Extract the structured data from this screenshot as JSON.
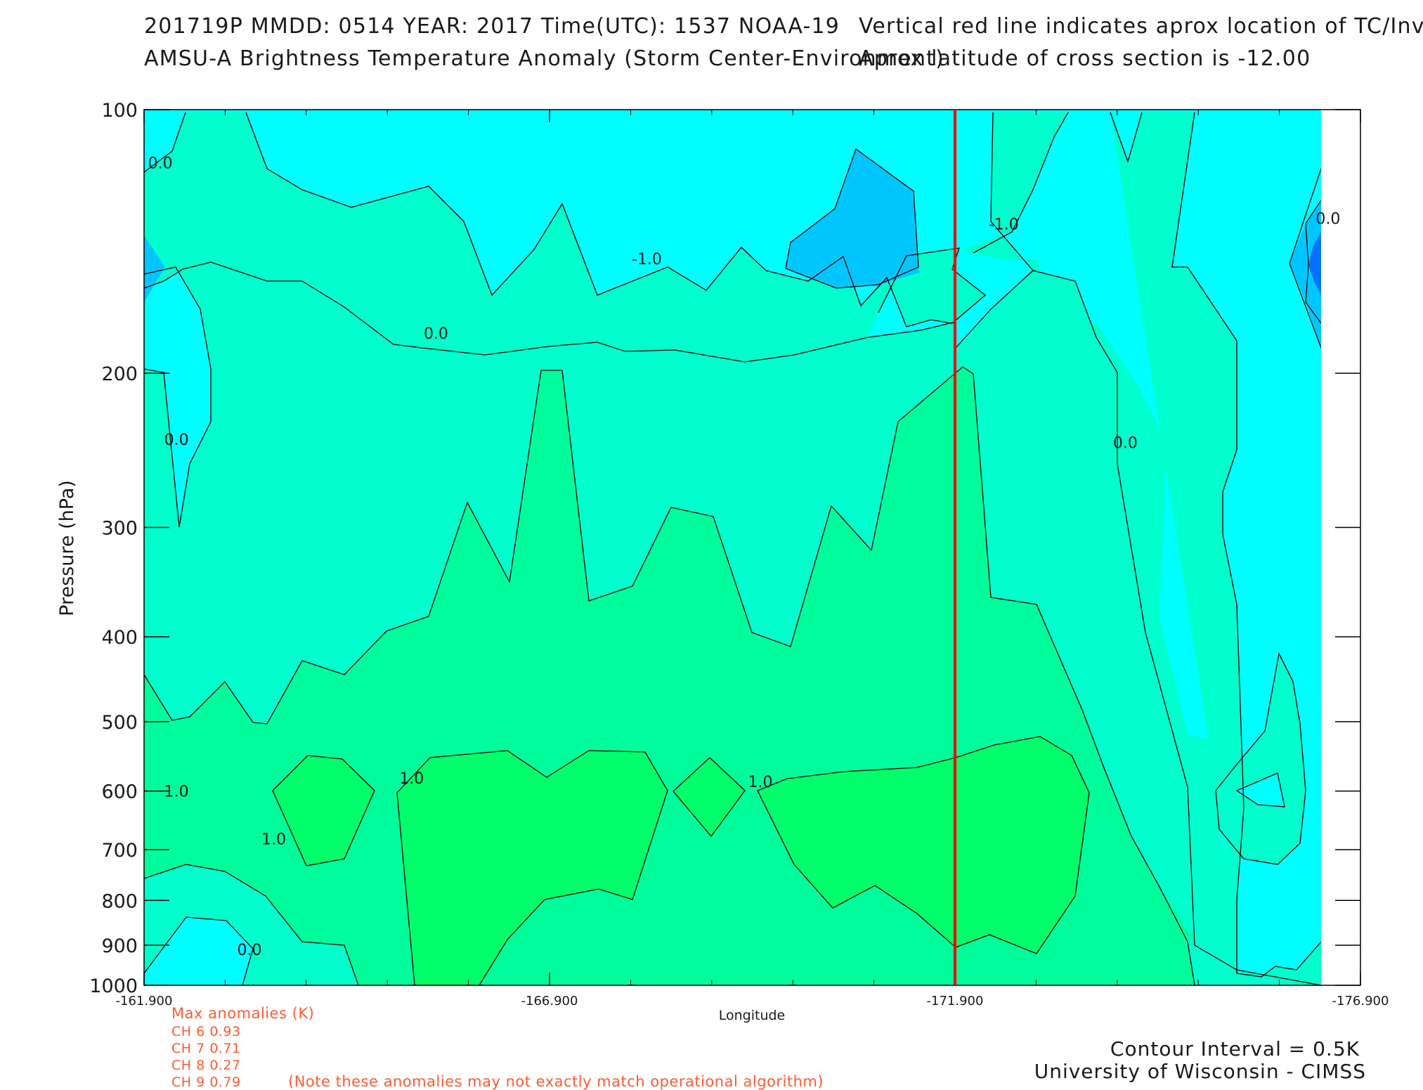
{
  "header": {
    "line1_left": "201719P  MMDD: 0514 YEAR: 2017 Time(UTC): 1537 NOAA-19",
    "line1_right": "Vertical red line indicates aprox location of TC/Invest",
    "line2_left": "AMSU-A Brightness Temperature Anomaly (Storm Center-Environment)",
    "line2_right": "Aprox latitude of cross section is -12.00"
  },
  "anomalies": {
    "title": "Max anomalies (K)",
    "rows": [
      "CH 6  0.93",
      "CH 7  0.71",
      "CH 8  0.27",
      "CH 9  0.79"
    ],
    "note": "(Note these anomalies may not exactly match operational algorithm)"
  },
  "footer": {
    "contour_interval": "Contour Interval = 0.5K",
    "credit": "University of Wisconsin - CIMSS"
  },
  "colors": {
    "lt_-1.0": "#0072ff",
    "-1.0_to_-0.5": "#00c6ff",
    "-0.5_to_0.0": "#00ffff",
    "0.0_to_0.5": "#00ffcc",
    "0.5_to_1.0": "#00fd9c",
    "gt_1.0": "#00ff6a",
    "tc_line": "#ff0000"
  },
  "chart_data": {
    "type": "contour",
    "xlabel": "Longitude",
    "ylabel": "Pressure (hPa)",
    "x_ticks": [
      "-161.900",
      "-166.900",
      "-171.900",
      "-176.900"
    ],
    "xlim": [
      -161.9,
      -176.9
    ],
    "y_ticks": [
      "100",
      "200",
      "300",
      "400",
      "500",
      "600",
      "700",
      "800",
      "900",
      "1000"
    ],
    "ylim": [
      100,
      1000
    ],
    "y_scale": "log",
    "contour_interval_K": 0.5,
    "tc_longitude": -171.9,
    "contour_labels": [
      {
        "text": "0.0",
        "lon": -162.1,
        "p": 115
      },
      {
        "text": "-1.0",
        "lon": -168.1,
        "p": 148
      },
      {
        "text": "-1.0",
        "lon": -172.5,
        "p": 135
      },
      {
        "text": "0.0",
        "lon": -176.5,
        "p": 133
      },
      {
        "text": "0.0",
        "lon": -165.5,
        "p": 180
      },
      {
        "text": "0.0",
        "lon": -162.3,
        "p": 238
      },
      {
        "text": "0.0",
        "lon": -174.0,
        "p": 240
      },
      {
        "text": "1.0",
        "lon": -162.3,
        "p": 600
      },
      {
        "text": "1.0",
        "lon": -165.2,
        "p": 580
      },
      {
        "text": "1.0",
        "lon": -163.5,
        "p": 680
      },
      {
        "text": "1.0",
        "lon": -169.5,
        "p": 585
      },
      {
        "text": "0.0",
        "lon": -163.2,
        "p": 910
      }
    ]
  }
}
